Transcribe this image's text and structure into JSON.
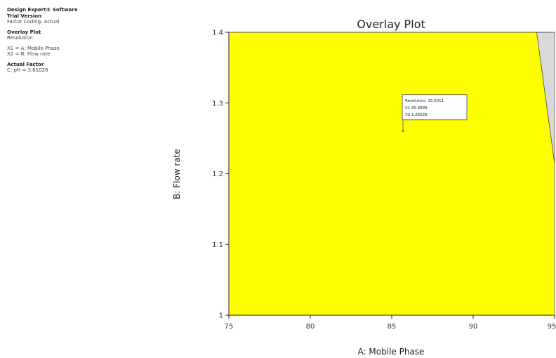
{
  "sidebar": {
    "software_line1": "Design Expert® Software",
    "software_line2": "Trial Version",
    "coding": "Factor Coding: Actual",
    "plot_heading": "Overlay Plot",
    "plot_response": "Resolution",
    "x1_def": "X1 = A: Mobile Phase",
    "x2_def": "X2 = B: Flow rate",
    "actual_factor_heading": "Actual Factor",
    "actual_factor_value": "C: pH = 3.61026"
  },
  "chart_data": {
    "type": "area",
    "title": "Overlay Plot",
    "xlabel": "A: Mobile Phase",
    "ylabel": "B: Flow rate",
    "xlim": [
      75,
      95
    ],
    "ylim": [
      1.0,
      1.4
    ],
    "x_ticks": [
      "75",
      "80",
      "85",
      "90",
      "95"
    ],
    "y_ticks": [
      "1",
      "1.1",
      "1.2",
      "1.3",
      "1.4"
    ],
    "regions": [
      {
        "fill": "#ffff00",
        "polygon": [
          [
            75,
            1.0
          ],
          [
            95,
            1.0
          ],
          [
            95,
            1.215
          ],
          [
            93.9,
            1.4
          ],
          [
            75,
            1.4
          ]
        ]
      },
      {
        "fill": "#d9d9d9",
        "polygon": [
          [
            93.9,
            1.4
          ],
          [
            95,
            1.4
          ],
          [
            95,
            1.215
          ]
        ]
      }
    ],
    "flag": {
      "x": 85.6899,
      "y": 1.26028,
      "lines": [
        "Resolution:   15.0011",
        "X1   85.6899",
        "X2   1.26028"
      ]
    },
    "grid": false
  },
  "colors": {
    "design_space": "#ffff00",
    "excluded_region": "#d9d9d9",
    "axis": "#222222"
  }
}
